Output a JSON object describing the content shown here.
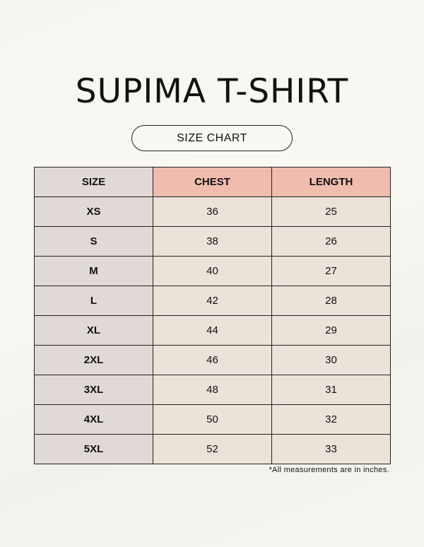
{
  "title": "SUPIMA T-SHIRT",
  "subtitle": "SIZE CHART",
  "colors": {
    "size_column": "#e0d9d5",
    "header_highlight": "#efbcae",
    "cell": "#ebe3d9",
    "border": "#222222"
  },
  "table": {
    "headers": [
      "SIZE",
      "CHEST",
      "LENGTH"
    ],
    "rows": [
      [
        "XS",
        "36",
        "25"
      ],
      [
        "S",
        "38",
        "26"
      ],
      [
        "M",
        "40",
        "27"
      ],
      [
        "L",
        "42",
        "28"
      ],
      [
        "XL",
        "44",
        "29"
      ],
      [
        "2XL",
        "46",
        "30"
      ],
      [
        "3XL",
        "48",
        "31"
      ],
      [
        "4XL",
        "50",
        "32"
      ],
      [
        "5XL",
        "52",
        "33"
      ]
    ]
  },
  "footnote": "*All measurements are in inches."
}
